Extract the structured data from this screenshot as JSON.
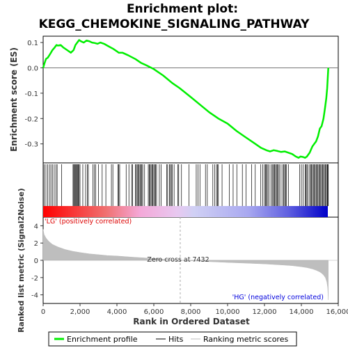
{
  "title_line1": "Enrichment plot:",
  "title_line2": "KEGG_CHEMOKINE_SIGNALING_PATHWAY",
  "colors": {
    "profile": "#00ee00",
    "hits": "#000000",
    "metric_fill": "#bebebe",
    "lg_text": "#dd0000",
    "hg_text": "#0000dd",
    "zero_text": "#333333"
  },
  "chart_data": [
    {
      "type": "line",
      "name": "enrichment-profile",
      "ylabel": "Enrichment score (ES)",
      "xlim": [
        0,
        16000
      ],
      "ylim": [
        -0.375,
        0.125
      ],
      "yticks": [
        0.1,
        0.0,
        -0.1,
        -0.2,
        -0.3
      ],
      "ytick_labels": [
        "0.1",
        "0.0",
        "-0.1",
        "-0.2",
        "-0.3"
      ],
      "x": [
        0,
        60,
        150,
        250,
        380,
        500,
        620,
        720,
        800,
        950,
        1100,
        1300,
        1500,
        1650,
        1750,
        1850,
        1950,
        2050,
        2200,
        2350,
        2500,
        2650,
        2800,
        2950,
        3100,
        3300,
        3550,
        3800,
        4000,
        4100,
        4300,
        4600,
        5000,
        5300,
        5600,
        6000,
        6500,
        7000,
        7400,
        8000,
        8500,
        9000,
        9500,
        10000,
        10500,
        11000,
        11500,
        11800,
        12100,
        12300,
        12500,
        12700,
        12900,
        13100,
        13300,
        13500,
        13700,
        13850,
        13950,
        14100,
        14200,
        14300,
        14450,
        14600,
        14700,
        14800,
        14900,
        15000,
        15100,
        15200,
        15280,
        15350,
        15400,
        15430,
        15460
      ],
      "y": [
        0.0,
        0.015,
        0.035,
        0.04,
        0.055,
        0.07,
        0.08,
        0.09,
        0.088,
        0.09,
        0.08,
        0.07,
        0.06,
        0.07,
        0.09,
        0.1,
        0.11,
        0.105,
        0.1,
        0.108,
        0.105,
        0.1,
        0.098,
        0.095,
        0.1,
        0.095,
        0.085,
        0.075,
        0.065,
        0.06,
        0.06,
        0.05,
        0.035,
        0.02,
        0.01,
        -0.005,
        -0.03,
        -0.06,
        -0.08,
        -0.115,
        -0.145,
        -0.175,
        -0.2,
        -0.22,
        -0.25,
        -0.275,
        -0.3,
        -0.315,
        -0.325,
        -0.33,
        -0.325,
        -0.328,
        -0.332,
        -0.33,
        -0.335,
        -0.34,
        -0.35,
        -0.355,
        -0.35,
        -0.352,
        -0.355,
        -0.35,
        -0.335,
        -0.31,
        -0.3,
        -0.29,
        -0.27,
        -0.24,
        -0.23,
        -0.2,
        -0.16,
        -0.12,
        -0.08,
        -0.04,
        0.0
      ]
    },
    {
      "type": "scatter",
      "name": "hits",
      "xlim": [
        0,
        16000
      ],
      "x": [
        60,
        150,
        250,
        340,
        420,
        500,
        600,
        690,
        760,
        1000,
        1620,
        1660,
        1700,
        1740,
        1780,
        1820,
        1860,
        1900,
        1940,
        2000,
        2150,
        2300,
        2400,
        2450,
        2700,
        2780,
        2850,
        3000,
        3200,
        3400,
        3700,
        3780,
        4050,
        4100,
        4150,
        4500,
        4650,
        4800,
        4850,
        5000,
        5050,
        5100,
        5150,
        5200,
        5250,
        5300,
        5350,
        5400,
        5500,
        5700,
        5750,
        5800,
        5850,
        5900,
        5950,
        6000,
        6050,
        6100,
        6150,
        6300,
        6400,
        6700,
        6750,
        6850,
        6900,
        6950,
        7000,
        7100,
        7300,
        7350,
        7500,
        7900,
        8300,
        8400,
        8500,
        8800,
        8900,
        9200,
        9300,
        9400,
        9450,
        9500,
        9700,
        10100,
        10300,
        10500,
        10800,
        11000,
        11300,
        11500,
        11800,
        11900,
        12000,
        12050,
        12100,
        12150,
        12200,
        12300,
        12400,
        12450,
        12500,
        12550,
        12600,
        12650,
        12700,
        12750,
        12800,
        12900,
        13000,
        13050,
        13100,
        13150,
        13200,
        13300,
        13900,
        14000,
        14100,
        14200,
        14250,
        14300,
        14350,
        14450,
        14500,
        14550,
        14600,
        14650,
        14700,
        14750,
        14800,
        14850,
        14900,
        14950,
        15000,
        15050,
        15100,
        15150,
        15200,
        15250,
        15300,
        15350,
        15400,
        15430,
        15460
      ]
    },
    {
      "type": "area",
      "name": "ranked-list-metric",
      "xlabel": "Rank in Ordered Dataset",
      "ylabel": "Ranked list metric (Signal2Noise)",
      "xlim": [
        0,
        16000
      ],
      "ylim": [
        -5,
        5
      ],
      "xticks": [
        0,
        2000,
        4000,
        6000,
        8000,
        10000,
        12000,
        14000,
        16000
      ],
      "xtick_labels": [
        "0",
        "2,000",
        "4,000",
        "6,000",
        "8,000",
        "10,000",
        "12,000",
        "14,000",
        "16,000"
      ],
      "yticks": [
        4,
        2,
        0,
        -2,
        -4
      ],
      "ytick_labels": [
        "4",
        "2",
        "0",
        "-2",
        "-4"
      ],
      "x": [
        0,
        50,
        150,
        300,
        500,
        800,
        1200,
        1600,
        2000,
        2500,
        3000,
        3500,
        4000,
        4500,
        5000,
        5500,
        6000,
        6500,
        7000,
        7432,
        8000,
        9000,
        10000,
        11000,
        12000,
        12500,
        13000,
        13500,
        14000,
        14300,
        14600,
        14800,
        15000,
        15100,
        15200,
        15300,
        15380,
        15430,
        15460
      ],
      "y": [
        3.6,
        3.0,
        2.6,
        2.2,
        1.85,
        1.55,
        1.25,
        1.05,
        0.9,
        0.75,
        0.65,
        0.55,
        0.5,
        0.42,
        0.35,
        0.28,
        0.2,
        0.12,
        0.06,
        0.0,
        -0.06,
        -0.15,
        -0.25,
        -0.33,
        -0.42,
        -0.48,
        -0.55,
        -0.62,
        -0.75,
        -0.85,
        -1.0,
        -1.15,
        -1.35,
        -1.5,
        -1.7,
        -2.0,
        -2.5,
        -3.2,
        -4.6
      ],
      "zero_cross_label": "Zero cross at 7432",
      "zero_cross_x": 7432,
      "positive_label": "'LG' (positively correlated)",
      "negative_label": "'HG' (negatively correlated)"
    }
  ],
  "legend": {
    "items": [
      {
        "label": "Enrichment profile",
        "color": "#00ee00"
      },
      {
        "label": "Hits",
        "color": "#000000"
      },
      {
        "label": "Ranking metric scores",
        "color": "#bebebe"
      }
    ]
  }
}
